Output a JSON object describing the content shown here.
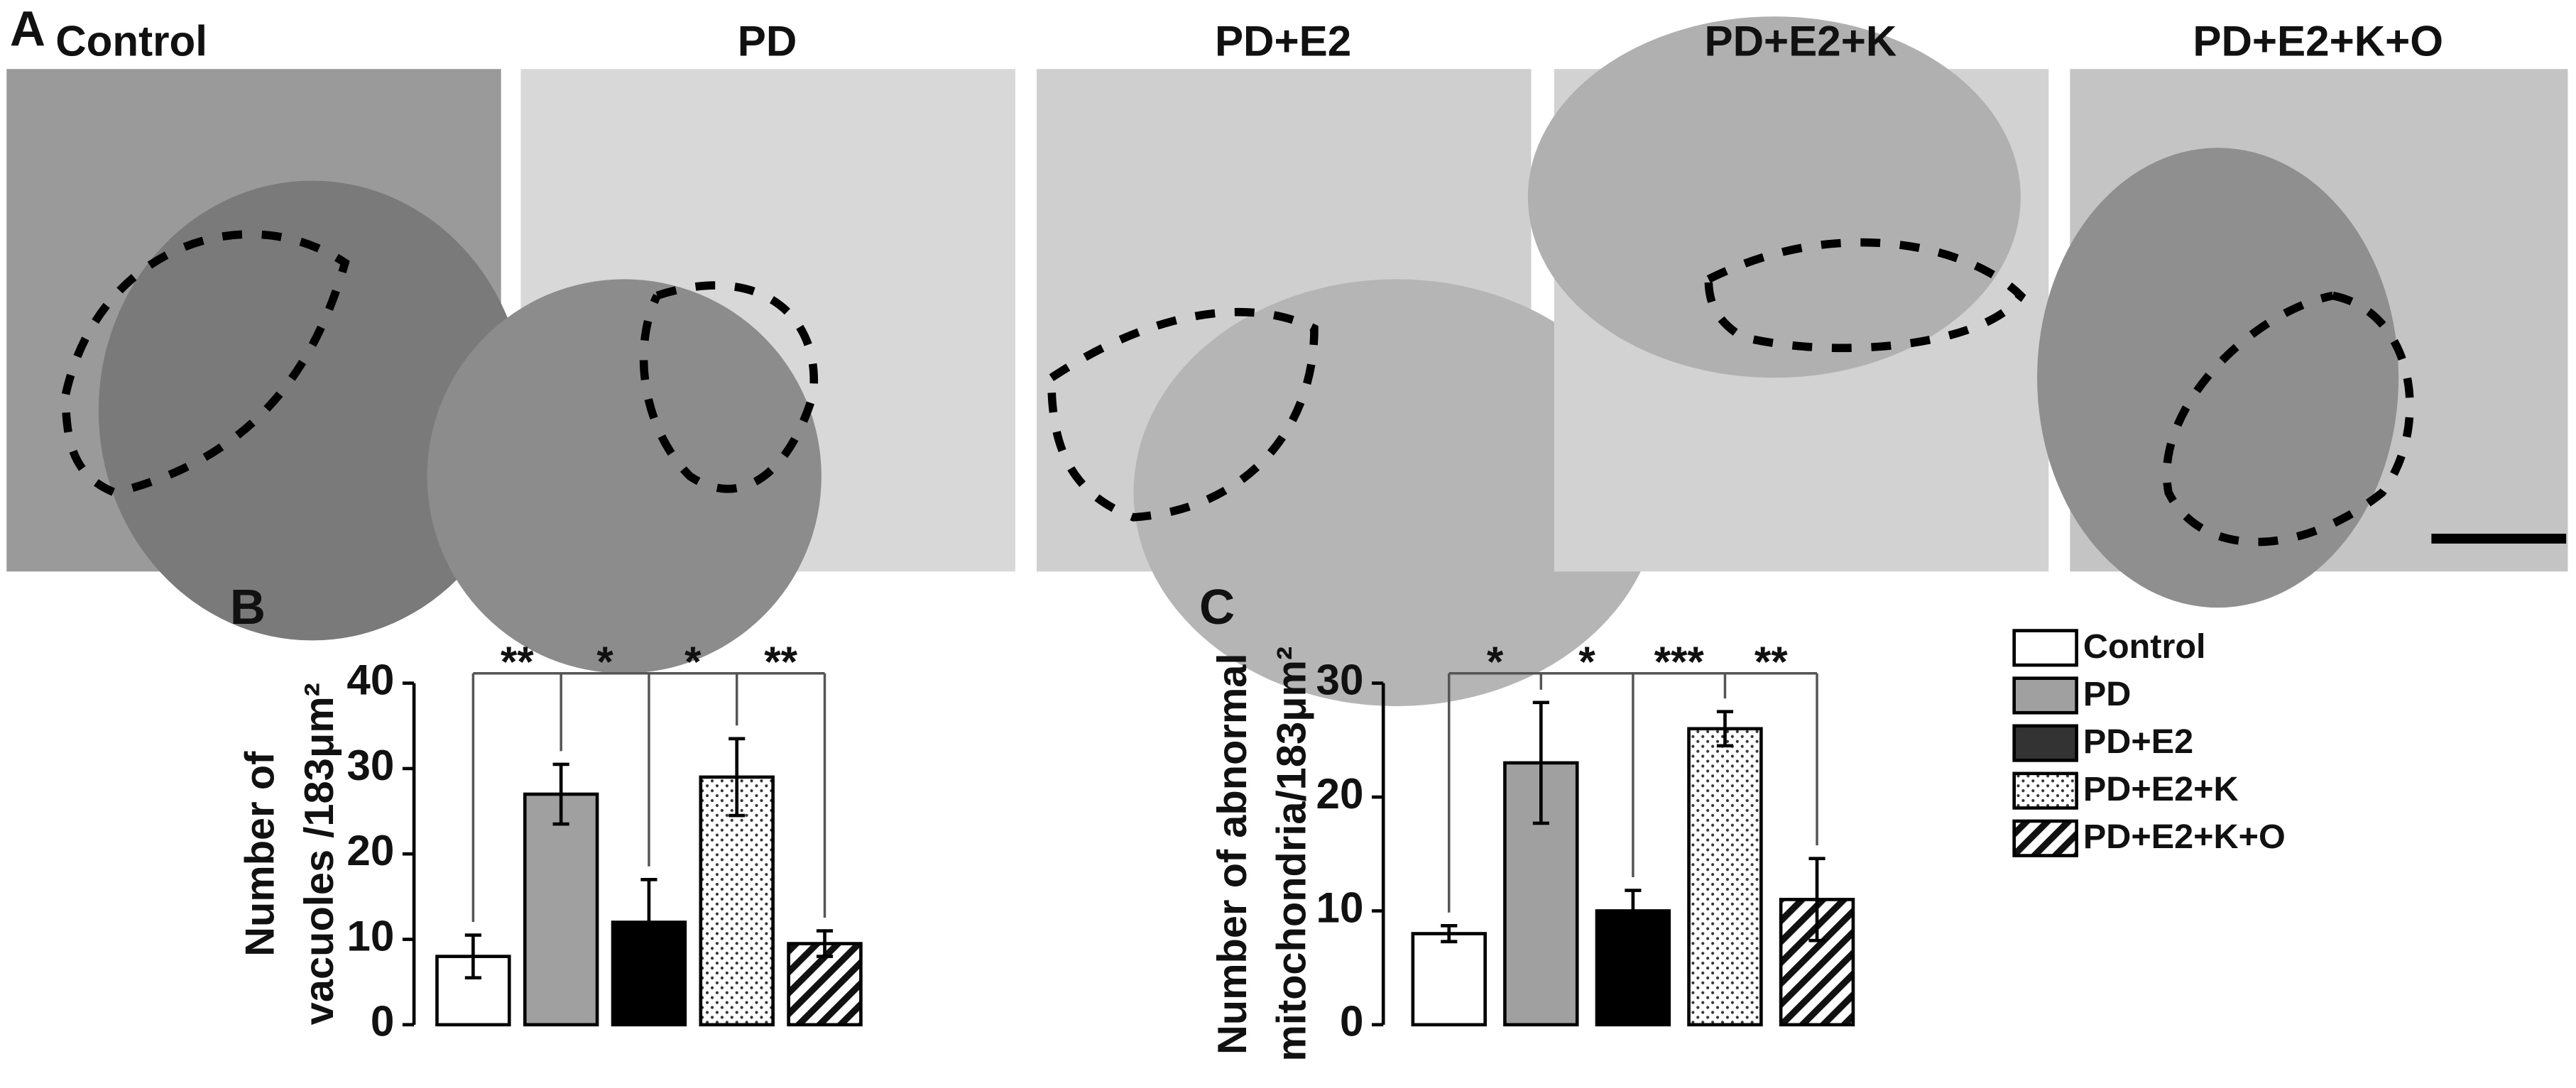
{
  "panel_a": {
    "label": "A",
    "titles": [
      "Control",
      "PD",
      "PD+E2",
      "PD+E2+K",
      "PD+E2+K+O"
    ]
  },
  "chart_data": [
    {
      "type": "bar",
      "panel": "B",
      "ylabel": [
        "Number of",
        "vacuoles /183μm²"
      ],
      "categories": [
        "Control",
        "PD",
        "PD+E2",
        "PD+E2+K",
        "PD+E2+K+O"
      ],
      "values": [
        8,
        27,
        12,
        29,
        9.5
      ],
      "errors": [
        2.5,
        3.5,
        5,
        4.5,
        1.5
      ],
      "colors": [
        "#ffffff",
        "#a0a0a0",
        "#000000",
        "#ffffff",
        "#ffffff"
      ],
      "patterns": [
        "none",
        "none",
        "none",
        "dots",
        "hatch"
      ],
      "significance": [
        "**",
        "*",
        "*",
        "**"
      ],
      "ylim": [
        0,
        40
      ],
      "yticks": [
        0,
        10,
        20,
        30,
        40
      ]
    },
    {
      "type": "bar",
      "panel": "C",
      "ylabel": [
        "Number of abnormal",
        "mitochondria/183μm²"
      ],
      "categories": [
        "Control",
        "PD",
        "PD+E2",
        "PD+E2+K",
        "PD+E2+K+O"
      ],
      "values": [
        8,
        23,
        10,
        26,
        11
      ],
      "errors": [
        0.7,
        5.3,
        1.8,
        1.5,
        3.6
      ],
      "colors": [
        "#ffffff",
        "#a0a0a0",
        "#000000",
        "#ffffff",
        "#ffffff"
      ],
      "patterns": [
        "none",
        "none",
        "none",
        "dots",
        "hatch"
      ],
      "significance": [
        "*",
        "*",
        "***",
        "**"
      ],
      "ylim": [
        0,
        30
      ],
      "yticks": [
        0,
        10,
        20,
        30
      ]
    }
  ]
}
